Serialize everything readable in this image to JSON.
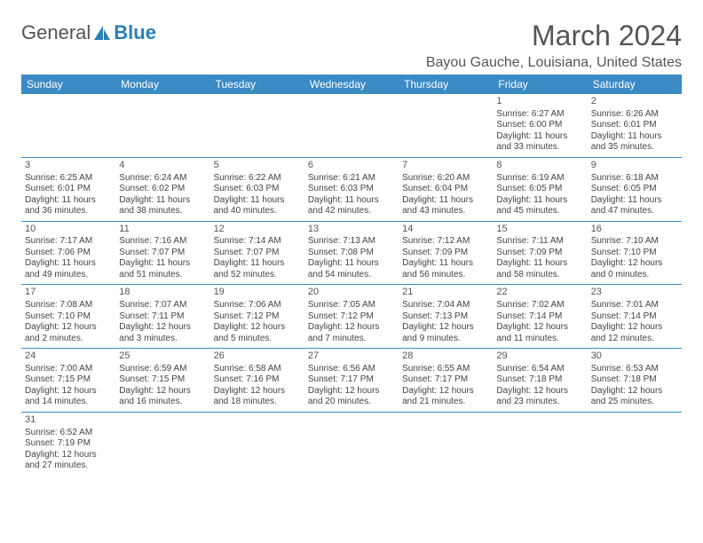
{
  "logo": {
    "part1": "General",
    "part2": "Blue"
  },
  "title": "March 2024",
  "location": "Bayou Gauche, Louisiana, United States",
  "colors": {
    "header_bg": "#3a8ac4",
    "header_fg": "#ffffff",
    "border": "#3a8ac4",
    "text": "#444444"
  },
  "dayHeaders": [
    "Sunday",
    "Monday",
    "Tuesday",
    "Wednesday",
    "Thursday",
    "Friday",
    "Saturday"
  ],
  "weeks": [
    [
      null,
      null,
      null,
      null,
      null,
      {
        "n": "1",
        "r": "Sunrise: 6:27 AM",
        "s": "Sunset: 6:00 PM",
        "d1": "Daylight: 11 hours",
        "d2": "and 33 minutes."
      },
      {
        "n": "2",
        "r": "Sunrise: 6:26 AM",
        "s": "Sunset: 6:01 PM",
        "d1": "Daylight: 11 hours",
        "d2": "and 35 minutes."
      }
    ],
    [
      {
        "n": "3",
        "r": "Sunrise: 6:25 AM",
        "s": "Sunset: 6:01 PM",
        "d1": "Daylight: 11 hours",
        "d2": "and 36 minutes."
      },
      {
        "n": "4",
        "r": "Sunrise: 6:24 AM",
        "s": "Sunset: 6:02 PM",
        "d1": "Daylight: 11 hours",
        "d2": "and 38 minutes."
      },
      {
        "n": "5",
        "r": "Sunrise: 6:22 AM",
        "s": "Sunset: 6:03 PM",
        "d1": "Daylight: 11 hours",
        "d2": "and 40 minutes."
      },
      {
        "n": "6",
        "r": "Sunrise: 6:21 AM",
        "s": "Sunset: 6:03 PM",
        "d1": "Daylight: 11 hours",
        "d2": "and 42 minutes."
      },
      {
        "n": "7",
        "r": "Sunrise: 6:20 AM",
        "s": "Sunset: 6:04 PM",
        "d1": "Daylight: 11 hours",
        "d2": "and 43 minutes."
      },
      {
        "n": "8",
        "r": "Sunrise: 6:19 AM",
        "s": "Sunset: 6:05 PM",
        "d1": "Daylight: 11 hours",
        "d2": "and 45 minutes."
      },
      {
        "n": "9",
        "r": "Sunrise: 6:18 AM",
        "s": "Sunset: 6:05 PM",
        "d1": "Daylight: 11 hours",
        "d2": "and 47 minutes."
      }
    ],
    [
      {
        "n": "10",
        "r": "Sunrise: 7:17 AM",
        "s": "Sunset: 7:06 PM",
        "d1": "Daylight: 11 hours",
        "d2": "and 49 minutes."
      },
      {
        "n": "11",
        "r": "Sunrise: 7:16 AM",
        "s": "Sunset: 7:07 PM",
        "d1": "Daylight: 11 hours",
        "d2": "and 51 minutes."
      },
      {
        "n": "12",
        "r": "Sunrise: 7:14 AM",
        "s": "Sunset: 7:07 PM",
        "d1": "Daylight: 11 hours",
        "d2": "and 52 minutes."
      },
      {
        "n": "13",
        "r": "Sunrise: 7:13 AM",
        "s": "Sunset: 7:08 PM",
        "d1": "Daylight: 11 hours",
        "d2": "and 54 minutes."
      },
      {
        "n": "14",
        "r": "Sunrise: 7:12 AM",
        "s": "Sunset: 7:09 PM",
        "d1": "Daylight: 11 hours",
        "d2": "and 56 minutes."
      },
      {
        "n": "15",
        "r": "Sunrise: 7:11 AM",
        "s": "Sunset: 7:09 PM",
        "d1": "Daylight: 11 hours",
        "d2": "and 58 minutes."
      },
      {
        "n": "16",
        "r": "Sunrise: 7:10 AM",
        "s": "Sunset: 7:10 PM",
        "d1": "Daylight: 12 hours",
        "d2": "and 0 minutes."
      }
    ],
    [
      {
        "n": "17",
        "r": "Sunrise: 7:08 AM",
        "s": "Sunset: 7:10 PM",
        "d1": "Daylight: 12 hours",
        "d2": "and 2 minutes."
      },
      {
        "n": "18",
        "r": "Sunrise: 7:07 AM",
        "s": "Sunset: 7:11 PM",
        "d1": "Daylight: 12 hours",
        "d2": "and 3 minutes."
      },
      {
        "n": "19",
        "r": "Sunrise: 7:06 AM",
        "s": "Sunset: 7:12 PM",
        "d1": "Daylight: 12 hours",
        "d2": "and 5 minutes."
      },
      {
        "n": "20",
        "r": "Sunrise: 7:05 AM",
        "s": "Sunset: 7:12 PM",
        "d1": "Daylight: 12 hours",
        "d2": "and 7 minutes."
      },
      {
        "n": "21",
        "r": "Sunrise: 7:04 AM",
        "s": "Sunset: 7:13 PM",
        "d1": "Daylight: 12 hours",
        "d2": "and 9 minutes."
      },
      {
        "n": "22",
        "r": "Sunrise: 7:02 AM",
        "s": "Sunset: 7:14 PM",
        "d1": "Daylight: 12 hours",
        "d2": "and 11 minutes."
      },
      {
        "n": "23",
        "r": "Sunrise: 7:01 AM",
        "s": "Sunset: 7:14 PM",
        "d1": "Daylight: 12 hours",
        "d2": "and 12 minutes."
      }
    ],
    [
      {
        "n": "24",
        "r": "Sunrise: 7:00 AM",
        "s": "Sunset: 7:15 PM",
        "d1": "Daylight: 12 hours",
        "d2": "and 14 minutes."
      },
      {
        "n": "25",
        "r": "Sunrise: 6:59 AM",
        "s": "Sunset: 7:15 PM",
        "d1": "Daylight: 12 hours",
        "d2": "and 16 minutes."
      },
      {
        "n": "26",
        "r": "Sunrise: 6:58 AM",
        "s": "Sunset: 7:16 PM",
        "d1": "Daylight: 12 hours",
        "d2": "and 18 minutes."
      },
      {
        "n": "27",
        "r": "Sunrise: 6:56 AM",
        "s": "Sunset: 7:17 PM",
        "d1": "Daylight: 12 hours",
        "d2": "and 20 minutes."
      },
      {
        "n": "28",
        "r": "Sunrise: 6:55 AM",
        "s": "Sunset: 7:17 PM",
        "d1": "Daylight: 12 hours",
        "d2": "and 21 minutes."
      },
      {
        "n": "29",
        "r": "Sunrise: 6:54 AM",
        "s": "Sunset: 7:18 PM",
        "d1": "Daylight: 12 hours",
        "d2": "and 23 minutes."
      },
      {
        "n": "30",
        "r": "Sunrise: 6:53 AM",
        "s": "Sunset: 7:18 PM",
        "d1": "Daylight: 12 hours",
        "d2": "and 25 minutes."
      }
    ],
    [
      {
        "n": "31",
        "r": "Sunrise: 6:52 AM",
        "s": "Sunset: 7:19 PM",
        "d1": "Daylight: 12 hours",
        "d2": "and 27 minutes."
      },
      null,
      null,
      null,
      null,
      null,
      null
    ]
  ]
}
